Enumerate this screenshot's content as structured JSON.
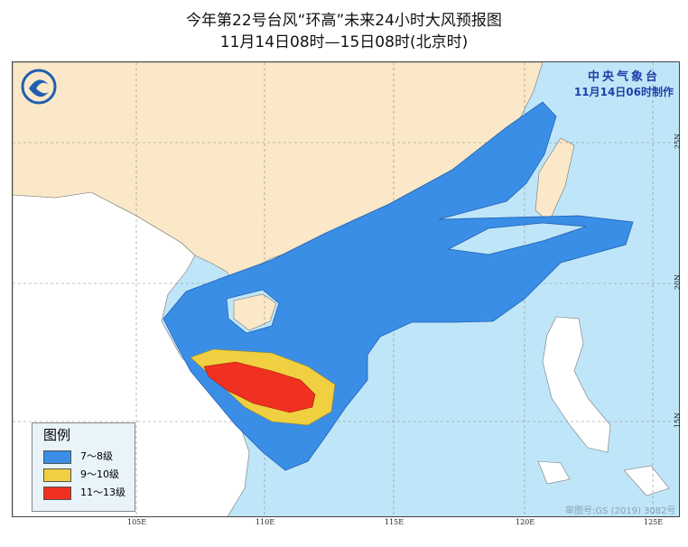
{
  "title": {
    "line1": "今年第22号台风“环高”未来24小时大风预报图",
    "line2": "11月14日08时—15日08时(北京时)"
  },
  "agency": {
    "name": "中央气象台",
    "issued": "11月14日06时制作"
  },
  "legend": {
    "title": "图例",
    "items": [
      {
        "label": "7～8级",
        "color": "#3a8ee6"
      },
      {
        "label": "9～10级",
        "color": "#f0d040"
      },
      {
        "label": "11～13级",
        "color": "#f03020"
      }
    ]
  },
  "axes": {
    "longitude_ticks": [
      "105E",
      "110E",
      "115E",
      "120E",
      "125E"
    ],
    "latitude_ticks": [
      "25N",
      "20N",
      "15N"
    ]
  },
  "review_number": "审图号:GS (2019) 3082号",
  "colors": {
    "sea": "#bfe6f8",
    "china_land": "#fae8c8",
    "other_land": "#ffffff",
    "level_7_8": "#3a8ee6",
    "level_9_10": "#f0d040",
    "level_11_13": "#f03020"
  }
}
